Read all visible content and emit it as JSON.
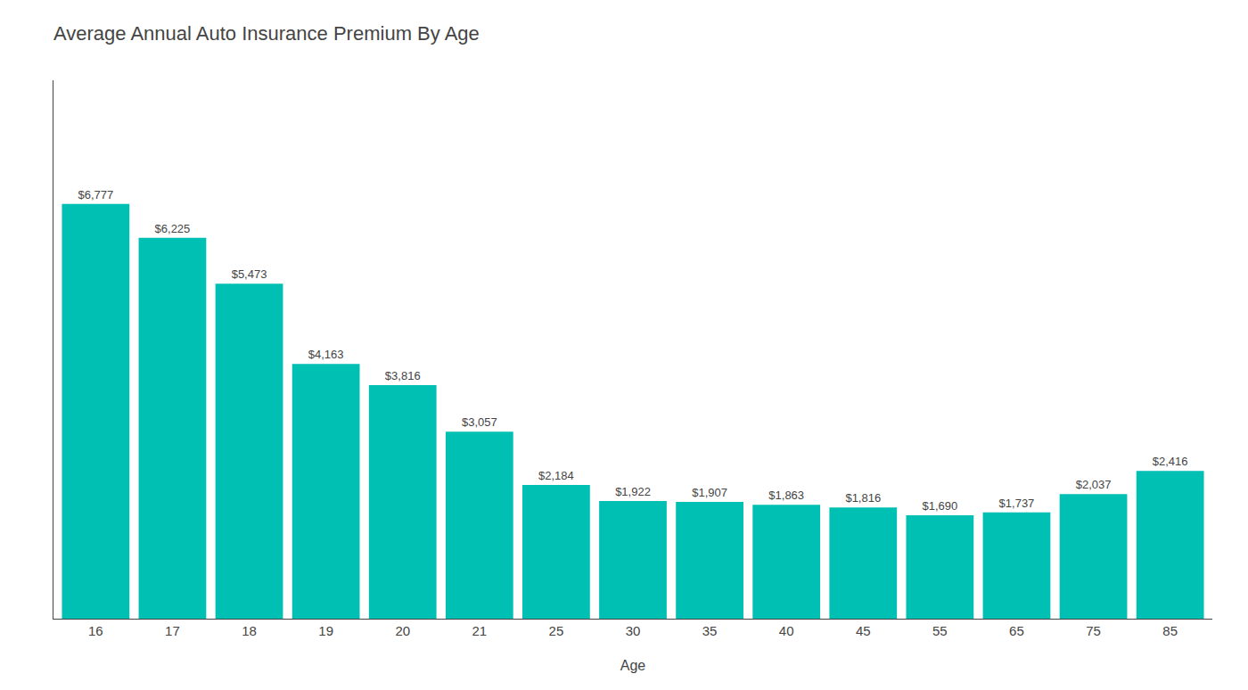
{
  "chart_data": {
    "type": "bar",
    "title": "Average Annual Auto Insurance Premium By Age",
    "xlabel": "Age",
    "categories": [
      "16",
      "17",
      "18",
      "19",
      "20",
      "21",
      "25",
      "30",
      "35",
      "40",
      "45",
      "55",
      "65",
      "75",
      "85"
    ],
    "values": [
      6777,
      6225,
      5473,
      4163,
      3816,
      3057,
      2184,
      1922,
      1907,
      1863,
      1816,
      1690,
      1737,
      2037,
      2416
    ],
    "value_labels": [
      "$6,777",
      "$6,225",
      "$5,473",
      "$4,163",
      "$3,816",
      "$3,057",
      "$2,184",
      "$1,922",
      "$1,907",
      "$1,863",
      "$1,816",
      "$1,690",
      "$1,737",
      "$2,037",
      "$2,416"
    ],
    "data_labels": true,
    "color": "#00BFB3",
    "ylim": [
      0,
      8800
    ],
    "yticks": [],
    "tick_labels": "x",
    "grid": false
  }
}
